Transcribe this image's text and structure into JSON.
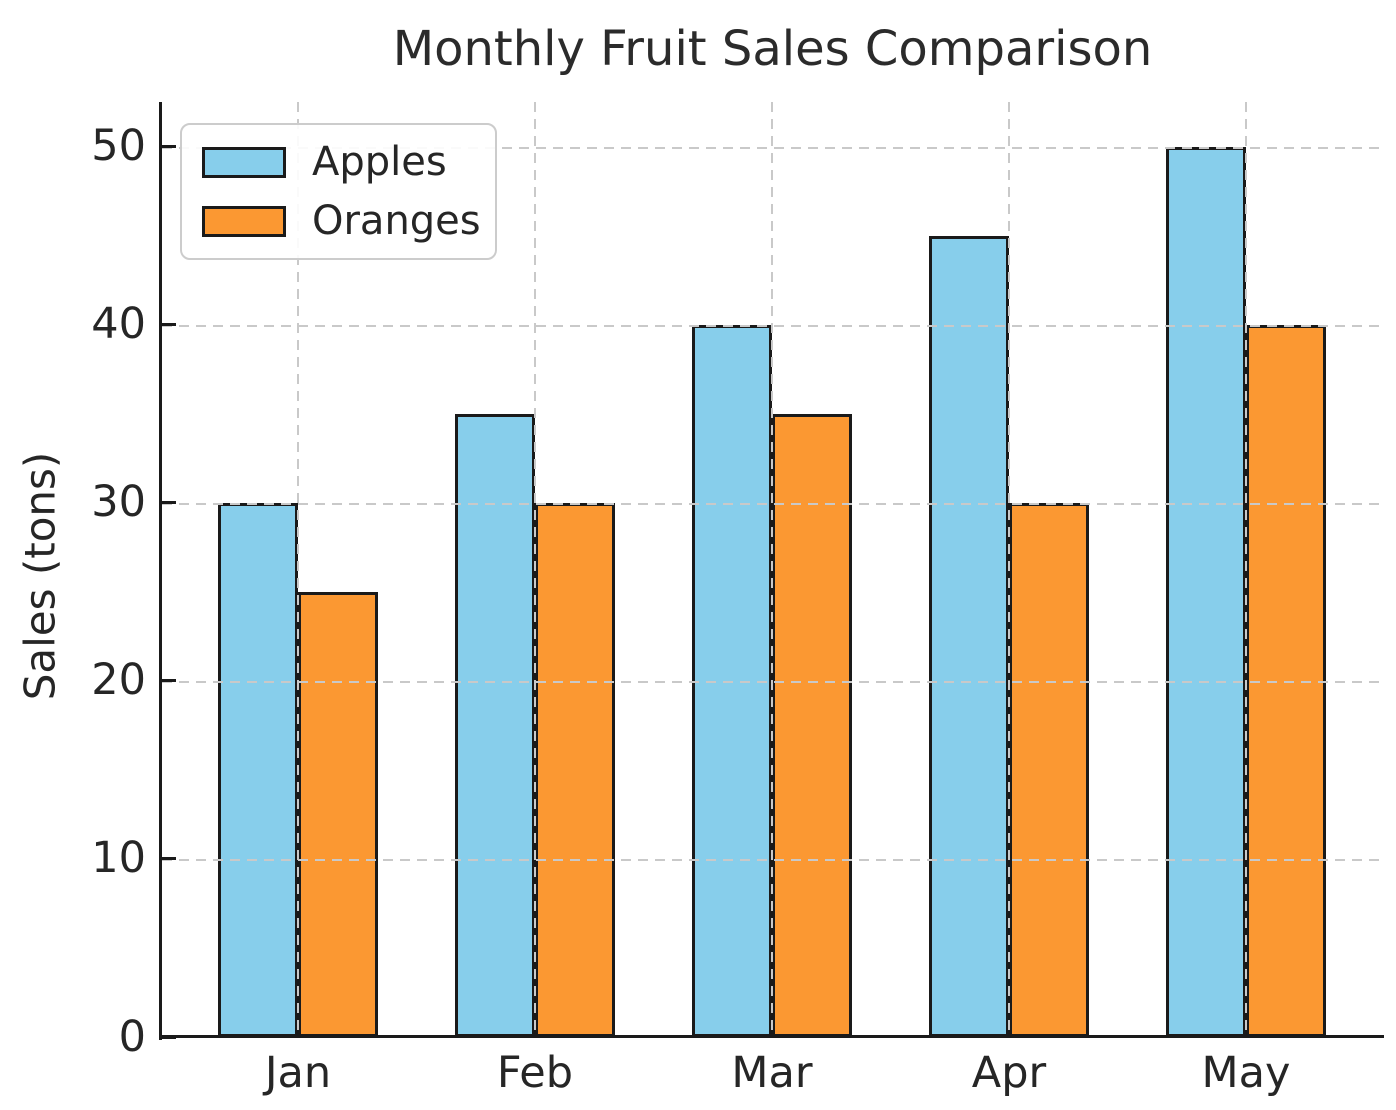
{
  "chart_data": {
    "type": "bar",
    "title": "Monthly Fruit Sales Comparison",
    "xlabel": "",
    "ylabel": "Sales (tons)",
    "categories": [
      "Jan",
      "Feb",
      "Mar",
      "Apr",
      "May"
    ],
    "series": [
      {
        "name": "Apples",
        "color": "#87CEEB",
        "values": [
          30,
          35,
          40,
          45,
          50
        ]
      },
      {
        "name": "Oranges",
        "color": "#FB9832",
        "values": [
          25,
          30,
          35,
          30,
          40
        ]
      }
    ],
    "ylim": [
      0,
      52.5
    ],
    "yticks": [
      0,
      10,
      20,
      30,
      40,
      50
    ],
    "grid": "dashed gray gridlines on both axes, drawn over the bars",
    "legend_position": "upper left",
    "colors": {
      "bar_edge": "#1a1a1a",
      "grid": "#c9c9c9",
      "axis": "#1a1a1a",
      "text": "#262626",
      "legend_border": "#cccccc",
      "background": "#ffffff"
    }
  }
}
